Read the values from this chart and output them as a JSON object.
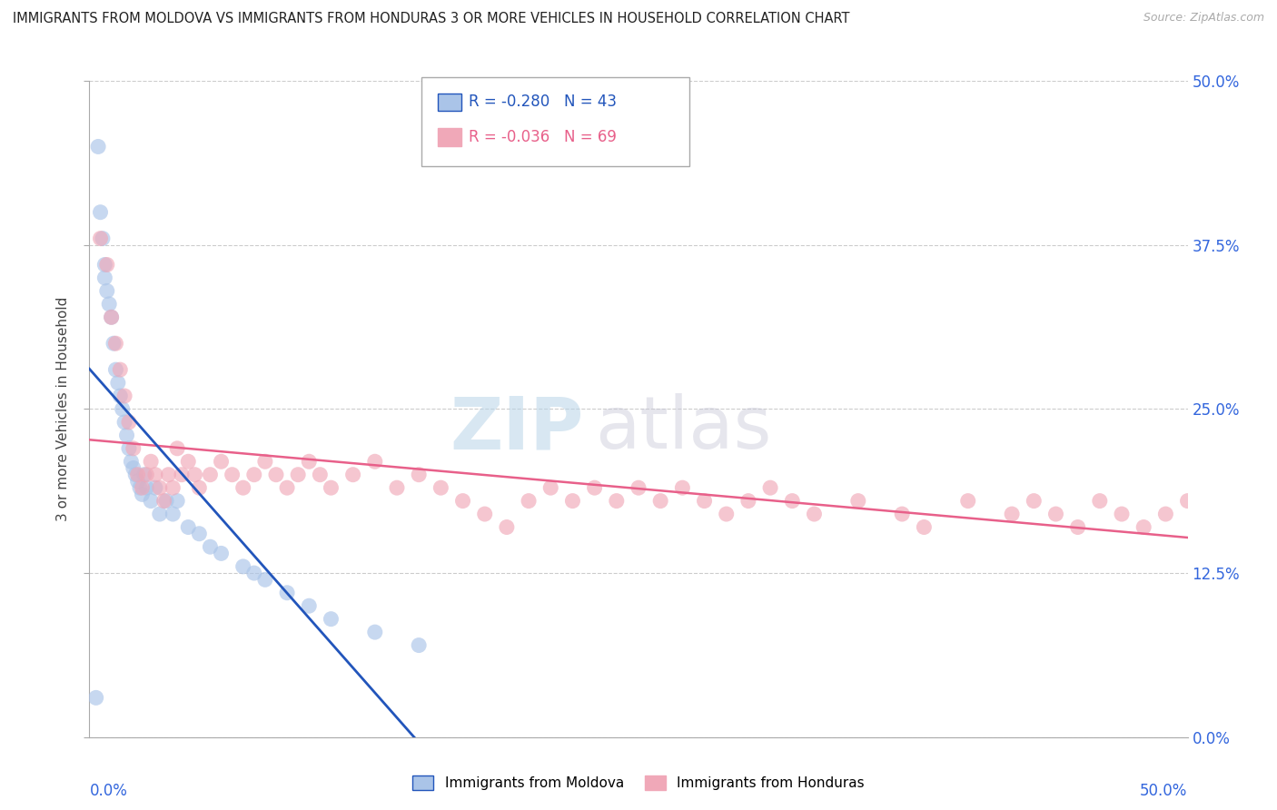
{
  "title": "IMMIGRANTS FROM MOLDOVA VS IMMIGRANTS FROM HONDURAS 3 OR MORE VEHICLES IN HOUSEHOLD CORRELATION CHART",
  "source": "Source: ZipAtlas.com",
  "ylabel": "3 or more Vehicles in Household",
  "ytick_vals": [
    0.0,
    12.5,
    25.0,
    37.5,
    50.0
  ],
  "xlim": [
    0.0,
    50.0
  ],
  "ylim": [
    0.0,
    50.0
  ],
  "moldova_R": -0.28,
  "moldova_N": 43,
  "honduras_R": -0.036,
  "honduras_N": 69,
  "moldova_color": "#aac4e8",
  "honduras_color": "#f0a8b8",
  "moldova_line_color": "#2255bb",
  "honduras_line_color": "#e8608a",
  "tick_label_color": "#3366dd",
  "moldova_x": [
    0.3,
    0.4,
    0.5,
    0.6,
    0.7,
    0.7,
    0.8,
    0.9,
    1.0,
    1.1,
    1.2,
    1.3,
    1.4,
    1.5,
    1.6,
    1.7,
    1.8,
    1.9,
    2.0,
    2.1,
    2.2,
    2.3,
    2.4,
    2.5,
    2.6,
    2.8,
    3.0,
    3.2,
    3.5,
    3.8,
    4.0,
    4.5,
    5.0,
    5.5,
    6.0,
    7.0,
    7.5,
    8.0,
    9.0,
    10.0,
    11.0,
    13.0,
    15.0
  ],
  "moldova_y": [
    3.0,
    45.0,
    40.0,
    38.0,
    36.0,
    35.0,
    34.0,
    33.0,
    32.0,
    30.0,
    28.0,
    27.0,
    26.0,
    25.0,
    24.0,
    23.0,
    22.0,
    21.0,
    20.5,
    20.0,
    19.5,
    19.0,
    18.5,
    20.0,
    19.0,
    18.0,
    19.0,
    17.0,
    18.0,
    17.0,
    18.0,
    16.0,
    15.5,
    14.5,
    14.0,
    13.0,
    12.5,
    12.0,
    11.0,
    10.0,
    9.0,
    8.0,
    7.0
  ],
  "honduras_x": [
    0.5,
    0.8,
    1.0,
    1.2,
    1.4,
    1.6,
    1.8,
    2.0,
    2.2,
    2.4,
    2.6,
    2.8,
    3.0,
    3.2,
    3.4,
    3.6,
    3.8,
    4.0,
    4.2,
    4.5,
    4.8,
    5.0,
    5.5,
    6.0,
    6.5,
    7.0,
    7.5,
    8.0,
    8.5,
    9.0,
    9.5,
    10.0,
    10.5,
    11.0,
    12.0,
    13.0,
    14.0,
    15.0,
    16.0,
    17.0,
    18.0,
    19.0,
    20.0,
    21.0,
    22.0,
    23.0,
    24.0,
    25.0,
    26.0,
    27.0,
    28.0,
    29.0,
    30.0,
    31.0,
    32.0,
    33.0,
    35.0,
    37.0,
    38.0,
    40.0,
    42.0,
    43.0,
    44.0,
    45.0,
    46.0,
    47.0,
    48.0,
    49.0,
    50.0
  ],
  "honduras_y": [
    38.0,
    36.0,
    32.0,
    30.0,
    28.0,
    26.0,
    24.0,
    22.0,
    20.0,
    19.0,
    20.0,
    21.0,
    20.0,
    19.0,
    18.0,
    20.0,
    19.0,
    22.0,
    20.0,
    21.0,
    20.0,
    19.0,
    20.0,
    21.0,
    20.0,
    19.0,
    20.0,
    21.0,
    20.0,
    19.0,
    20.0,
    21.0,
    20.0,
    19.0,
    20.0,
    21.0,
    19.0,
    20.0,
    19.0,
    18.0,
    17.0,
    16.0,
    18.0,
    19.0,
    18.0,
    19.0,
    18.0,
    19.0,
    18.0,
    19.0,
    18.0,
    17.0,
    18.0,
    19.0,
    18.0,
    17.0,
    18.0,
    17.0,
    16.0,
    18.0,
    17.0,
    18.0,
    17.0,
    16.0,
    18.0,
    17.0,
    16.0,
    17.0,
    18.0
  ],
  "watermark_zip": "ZIP",
  "watermark_atlas": "atlas",
  "legend_moldova_label": "Immigrants from Moldova",
  "legend_honduras_label": "Immigrants from Honduras"
}
